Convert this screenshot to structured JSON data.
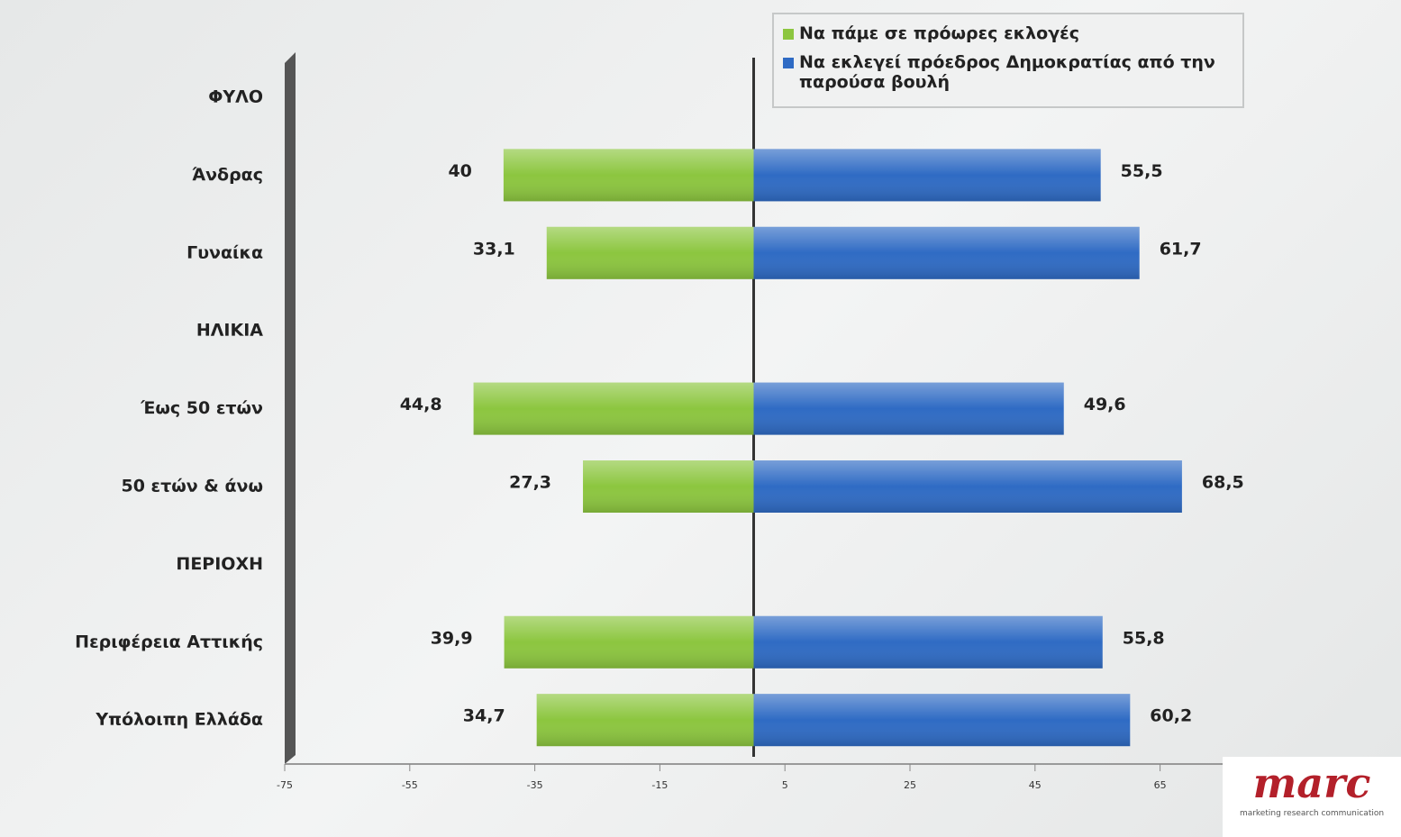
{
  "chart_data": {
    "type": "bar",
    "orientation": "horizontal",
    "categories": [
      "ΦΥΛΟ",
      "Άνδρας",
      "Γυναίκα",
      "ΗΛΙΚΙΑ",
      "Έως 50 ετών",
      "50 ετών & άνω",
      "ΠΕΡΙΟΧΗ",
      "Περιφέρεια Αττικής",
      "Υπόλοιπη Ελλάδα"
    ],
    "series": [
      {
        "name": "Να πάμε σε  πρόωρες εκλογές",
        "color": "#8cc63f",
        "values": [
          null,
          -40,
          -33.1,
          null,
          -44.8,
          -27.3,
          null,
          -39.9,
          -34.7
        ],
        "value_labels": [
          null,
          "40",
          "33,1",
          null,
          "44,8",
          "27,3",
          null,
          "39,9",
          "34,7"
        ]
      },
      {
        "name": "Να εκλεγεί πρόεδρος Δημοκρατίας από την παρούσα βουλή",
        "color": "#2f6bc4",
        "values": [
          null,
          55.5,
          61.7,
          null,
          49.6,
          68.5,
          null,
          55.8,
          60.2
        ],
        "value_labels": [
          null,
          "55,5",
          "61,7",
          null,
          "49,6",
          "68,5",
          null,
          "55,8",
          "60,2"
        ]
      }
    ],
    "xlim": [
      -75,
      75
    ],
    "xticks": [
      -75,
      -55,
      -35,
      -15,
      5,
      25,
      45,
      65
    ],
    "legend": "top-right",
    "logo": {
      "text": "marc",
      "subtitle": "marketing research communication"
    }
  }
}
